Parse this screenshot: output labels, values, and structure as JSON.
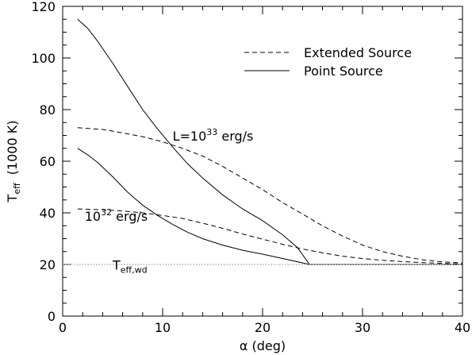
{
  "chart_data": {
    "type": "line",
    "xlabel": "α (deg)",
    "ylabel": {
      "main": "T",
      "sub": "eff",
      "units": "(1000 K)"
    },
    "xlim": [
      0,
      40
    ],
    "ylim": [
      0,
      120
    ],
    "xticks": [
      0,
      10,
      20,
      30,
      40
    ],
    "yticks": [
      0,
      20,
      40,
      60,
      80,
      100,
      120
    ],
    "grid": false,
    "legend": {
      "placement": "top-right",
      "entries": [
        {
          "label": "Extended Source",
          "style": "dashed"
        },
        {
          "label": "Point Source",
          "style": "solid"
        }
      ]
    },
    "annotations": [
      {
        "id": "l33",
        "prefix": "L=10",
        "sup": "33",
        "suffix": " erg/s",
        "x": 11,
        "y": 68
      },
      {
        "id": "l32",
        "prefix": "10",
        "sup": "32",
        "suffix": " erg/s",
        "x": 2.2,
        "y": 37
      },
      {
        "id": "twd",
        "prefix": "T",
        "sub": "eff,wd",
        "x": 5,
        "y": 18
      }
    ],
    "series": [
      {
        "style": "solid",
        "x": [
          1.5,
          2.5,
          3.5,
          5,
          6.5,
          8,
          9.5,
          11,
          12.5,
          14,
          16,
          18,
          20,
          22,
          23.5,
          24.7,
          25,
          30,
          35,
          40
        ],
        "y": [
          115,
          111.5,
          106.5,
          98,
          89,
          80,
          72.5,
          65.5,
          59,
          53.5,
          47,
          41.5,
          37,
          31.5,
          26.5,
          20,
          20,
          20,
          20,
          20
        ]
      },
      {
        "style": "solid",
        "x": [
          1.5,
          2.5,
          3.5,
          5,
          6.5,
          8,
          9.5,
          11,
          12.5,
          14,
          16,
          18,
          20,
          22,
          24.7,
          25,
          30,
          35,
          40
        ],
        "y": [
          65,
          62.5,
          59.5,
          54,
          48,
          43,
          39,
          35.5,
          32.5,
          30,
          27.5,
          25.5,
          24,
          22.3,
          20,
          20,
          20,
          20,
          20
        ]
      },
      {
        "style": "dashed",
        "x": [
          1.5,
          4,
          6,
          8,
          10,
          12,
          14,
          16,
          18,
          20,
          22,
          24,
          26,
          28,
          30,
          32,
          34,
          36,
          38,
          40
        ],
        "y": [
          73,
          72.3,
          71,
          69.5,
          67.5,
          65,
          62,
          58,
          53.5,
          49,
          44,
          39.5,
          35,
          31,
          27.5,
          25,
          23.2,
          21.8,
          21,
          20.6
        ]
      },
      {
        "style": "dashed",
        "x": [
          1.5,
          4,
          6,
          8,
          10,
          12,
          14,
          16,
          18,
          20,
          22,
          24,
          26,
          28,
          30,
          32,
          34,
          36,
          38,
          40
        ],
        "y": [
          41.5,
          41.2,
          40.7,
          40,
          39,
          37.8,
          36,
          34,
          31.8,
          29.8,
          27.8,
          26,
          24.5,
          23.2,
          22.3,
          21.6,
          21.1,
          20.7,
          20.4,
          20.2
        ]
      },
      {
        "style": "dotted",
        "x": [
          0,
          40
        ],
        "y": [
          20,
          20
        ]
      }
    ]
  }
}
